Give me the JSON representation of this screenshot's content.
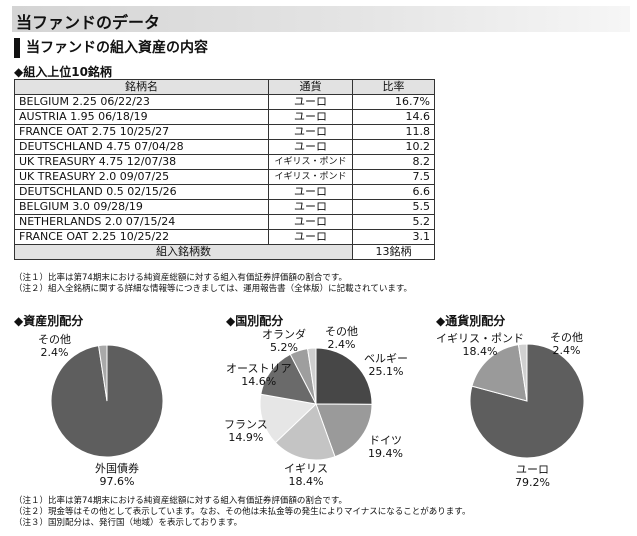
{
  "header": {
    "title": "当ファンドのデータ"
  },
  "section": {
    "title": "当ファンドの組入資産の内容"
  },
  "holdings": {
    "subtitle": "◆組入上位10銘柄",
    "columns": {
      "name": "銘柄名",
      "currency": "通貨",
      "rate": "比率"
    },
    "rows": [
      {
        "name": "BELGIUM 2.25 06/22/23",
        "currency": "ユーロ",
        "rate": "16.7%"
      },
      {
        "name": "AUSTRIA 1.95 06/18/19",
        "currency": "ユーロ",
        "rate": "14.6"
      },
      {
        "name": "FRANCE OAT 2.75 10/25/27",
        "currency": "ユーロ",
        "rate": "11.8"
      },
      {
        "name": "DEUTSCHLAND 4.75 07/04/28",
        "currency": "ユーロ",
        "rate": "10.2"
      },
      {
        "name": "UK TREASURY 4.75 12/07/38",
        "currency": "イギリス・ポンド",
        "rate": "8.2"
      },
      {
        "name": "UK TREASURY 2.0 09/07/25",
        "currency": "イギリス・ポンド",
        "rate": "7.5"
      },
      {
        "name": "DEUTSCHLAND 0.5 02/15/26",
        "currency": "ユーロ",
        "rate": "6.6"
      },
      {
        "name": "BELGIUM 3.0 09/28/19",
        "currency": "ユーロ",
        "rate": "5.5"
      },
      {
        "name": "NETHERLANDS 2.0 07/15/24",
        "currency": "ユーロ",
        "rate": "5.2"
      },
      {
        "name": "FRANCE OAT 2.25 10/25/22",
        "currency": "ユーロ",
        "rate": "3.1"
      }
    ],
    "total_label": "組入銘柄数",
    "total_value": "13銘柄"
  },
  "notes_top": [
    "（注１）比率は第74期末における純資産総額に対する組入有価証券評価額の割合です。",
    "（注２）組入全銘柄に関する詳細な情報等につきましては、運用報告書（全体版）に記載されています。"
  ],
  "charts": [
    {
      "title": "◆資産別配分",
      "slices": [
        {
          "name": "外国債券",
          "value": 97.6,
          "label": "97.6%",
          "color": "#5e5e5e"
        },
        {
          "name": "その他",
          "value": 2.4,
          "label": "2.4%",
          "color": "#a9a9a9"
        }
      ]
    },
    {
      "title": "◆国別配分",
      "slices": [
        {
          "name": "ベルギー",
          "value": 25.1,
          "label": "25.1%",
          "color": "#474747"
        },
        {
          "name": "ドイツ",
          "value": 19.4,
          "label": "19.4%",
          "color": "#9a9a9a"
        },
        {
          "name": "イギリス",
          "value": 18.4,
          "label": "18.4%",
          "color": "#c4c4c4"
        },
        {
          "name": "フランス",
          "value": 14.9,
          "label": "14.9%",
          "color": "#e6e6e6"
        },
        {
          "name": "オーストリア",
          "value": 14.6,
          "label": "14.6%",
          "color": "#6a6a6a"
        },
        {
          "name": "オランダ",
          "value": 5.2,
          "label": "5.2%",
          "color": "#9e9e9e"
        },
        {
          "name": "その他",
          "value": 2.4,
          "label": "2.4%",
          "color": "#cfcfcf"
        }
      ]
    },
    {
      "title": "◆通貨別配分",
      "slices": [
        {
          "name": "ユーロ",
          "value": 79.2,
          "label": "79.2%",
          "color": "#5e5e5e"
        },
        {
          "name": "イギリス・ポンド",
          "value": 18.4,
          "label": "18.4%",
          "color": "#9a9a9a"
        },
        {
          "name": "その他",
          "value": 2.4,
          "label": "2.4%",
          "color": "#d0d0d0"
        }
      ]
    }
  ],
  "notes_bottom": [
    "（注１）比率は第74期末における純資産総額に対する組入有価証券評価額の割合です。",
    "（注２）現金等はその他として表示しています。なお、その他は未払金等の発生によりマイナスになることがあります。",
    "（注３）国別配分は、発行国（地域）を表示しております。"
  ]
}
